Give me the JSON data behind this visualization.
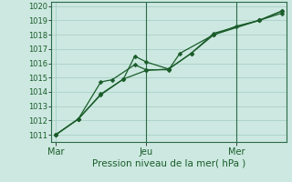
{
  "xlabel": "Pression niveau de la mer( hPa )",
  "bg_color": "#cce8e0",
  "grid_color": "#aacfc8",
  "line_color": "#1a5c2a",
  "spine_color": "#2a6a4a",
  "x_ticks_pos": [
    0,
    0.4,
    0.8
  ],
  "x_tick_labels": [
    "Mar",
    "Jeu",
    "Mer"
  ],
  "ylim": [
    1010.5,
    1020.3
  ],
  "yticks": [
    1011,
    1012,
    1013,
    1014,
    1015,
    1016,
    1017,
    1018,
    1019,
    1020
  ],
  "vline_positions": [
    0.4,
    0.8
  ],
  "line1_x": [
    0.0,
    0.1,
    0.2,
    0.3,
    0.4,
    0.5,
    0.6,
    0.7,
    0.8,
    0.9,
    1.0
  ],
  "line1_y": [
    1011.0,
    1012.1,
    1013.8,
    1014.9,
    1015.5,
    1015.6,
    1016.7,
    1018.0,
    1018.6,
    1019.0,
    1019.5
  ],
  "line2_x": [
    0.0,
    0.1,
    0.2,
    0.25,
    0.35,
    0.4,
    0.5,
    0.55,
    0.7,
    0.9,
    1.0
  ],
  "line2_y": [
    1011.0,
    1012.1,
    1014.7,
    1014.85,
    1015.9,
    1015.55,
    1015.55,
    1016.7,
    1018.0,
    1019.0,
    1019.65
  ],
  "line3_x": [
    0.0,
    0.1,
    0.2,
    0.3,
    0.35,
    0.4,
    0.5,
    0.6,
    0.7,
    0.9,
    1.0
  ],
  "line3_y": [
    1011.0,
    1012.1,
    1013.85,
    1014.9,
    1016.5,
    1016.1,
    1015.6,
    1016.7,
    1018.1,
    1019.0,
    1019.65
  ],
  "markersize": 2.5,
  "linewidth": 0.9,
  "xlabel_fontsize": 7.5,
  "ytick_fontsize": 6.0,
  "xtick_fontsize": 7.0
}
